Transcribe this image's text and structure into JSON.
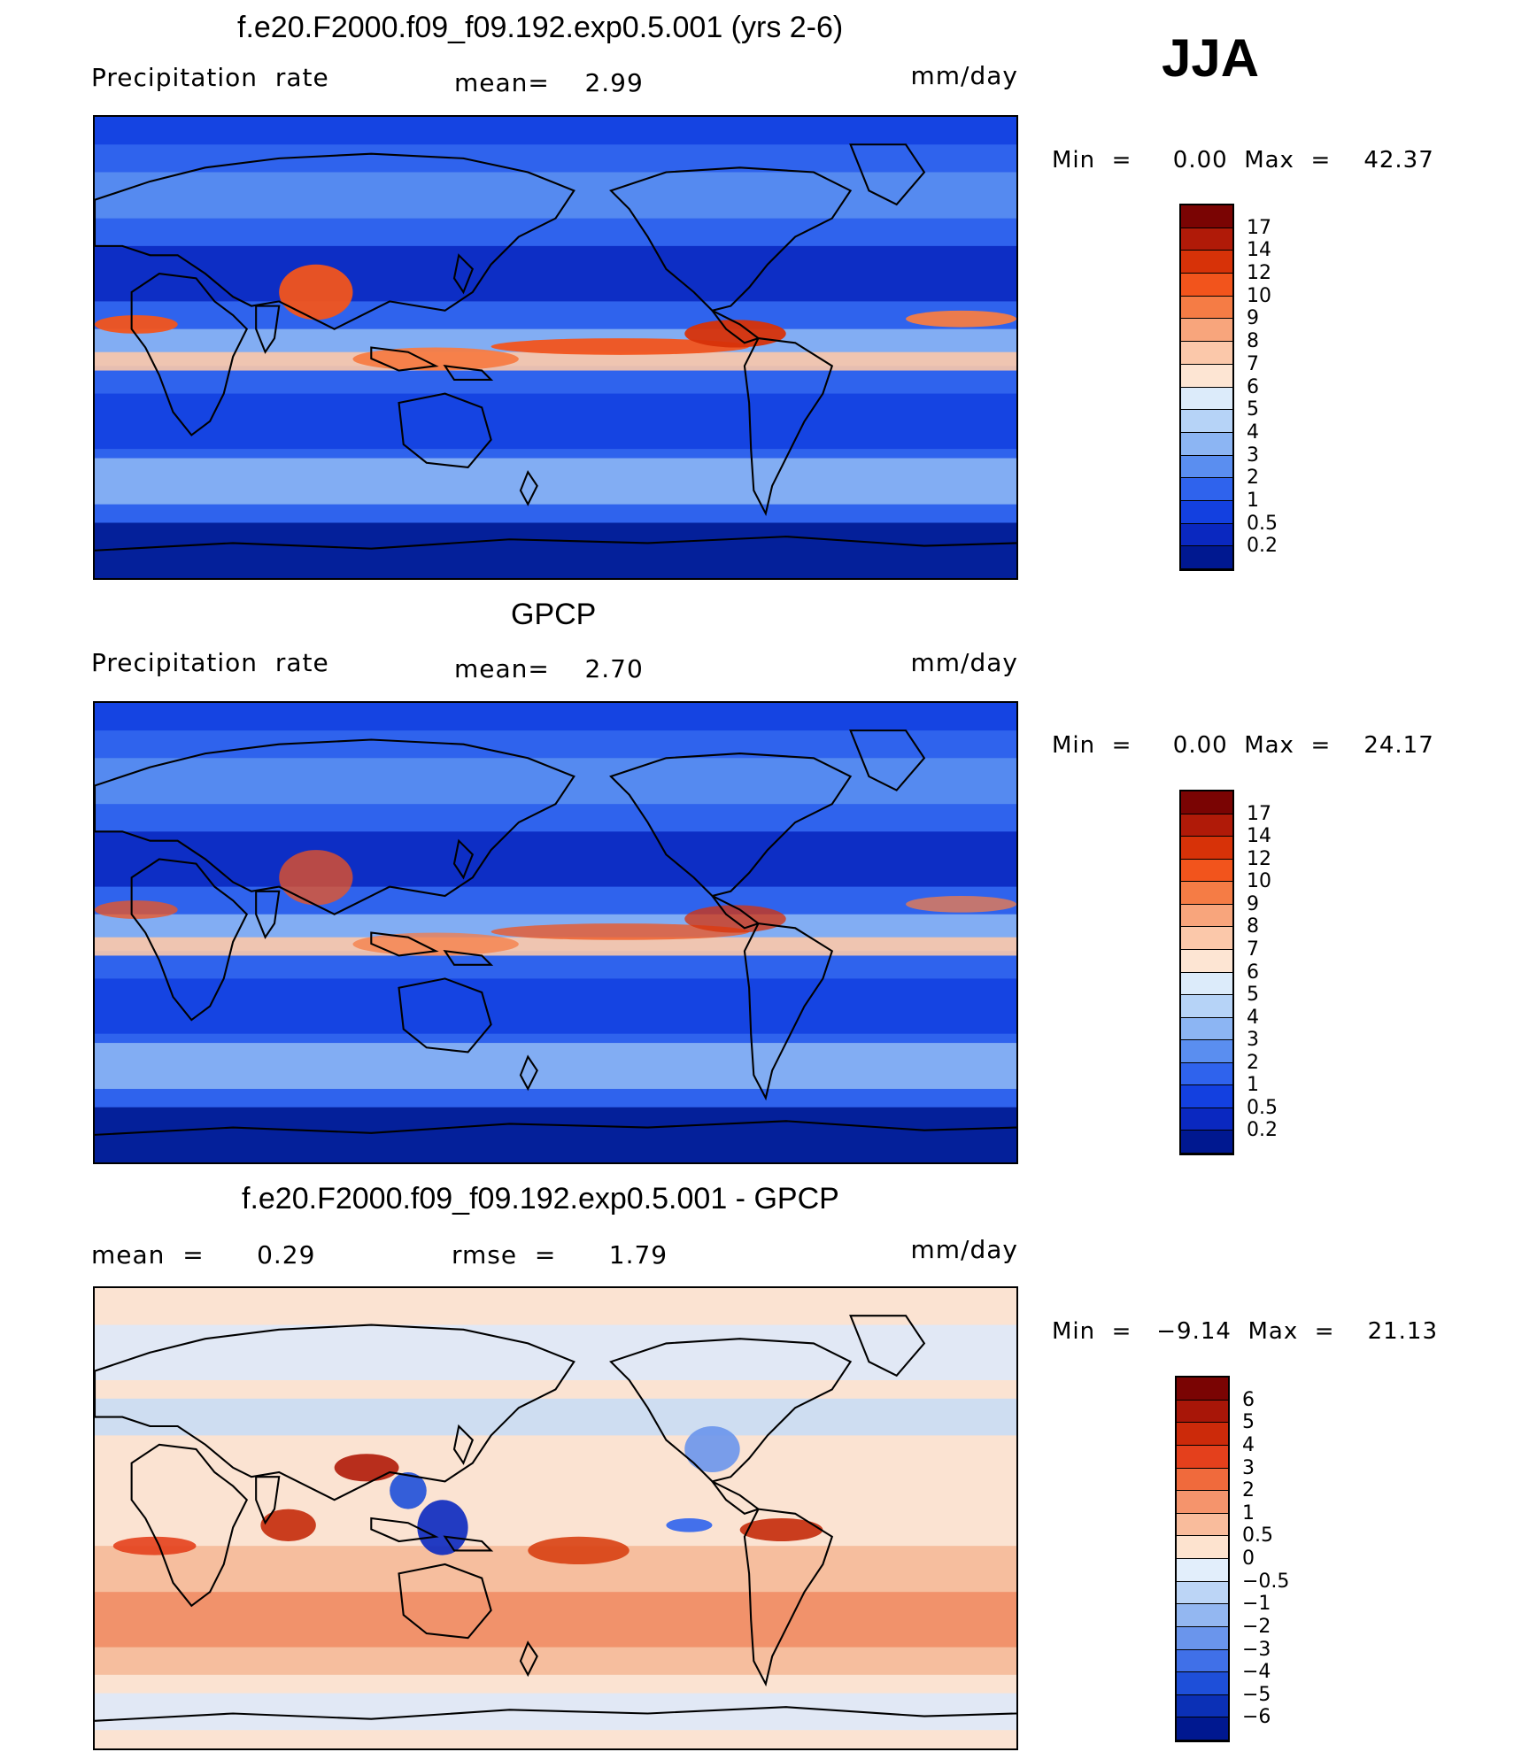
{
  "season": "JJA",
  "panels": [
    {
      "title": "f.e20.F2000.f09_f09.192.exp0.5.001 (yrs 2-6)",
      "left_label": "Precipitation  rate",
      "mid_label": "mean=    2.99",
      "units": "mm/day",
      "minmax": "Min  =     0.00  Max  =    42.37",
      "colorbar": {
        "labels": [
          "17",
          "14",
          "12",
          "10",
          "9",
          "8",
          "7",
          "6",
          "5",
          "4",
          "3",
          "2",
          "1",
          "0.5",
          "0.2"
        ],
        "colors": [
          "#7a0403",
          "#b01a08",
          "#d73208",
          "#f2541c",
          "#f57c45",
          "#f8a57c",
          "#fbc8aa",
          "#fde5d3",
          "#dcebfa",
          "#b6d3f7",
          "#8cb5f3",
          "#5a8ef0",
          "#2f63ed",
          "#1340e0",
          "#0a28c0",
          "#001890"
        ]
      },
      "map_style": "model"
    },
    {
      "title": "GPCP",
      "left_label": "Precipitation  rate",
      "mid_label": "mean=    2.70",
      "units": "mm/day",
      "minmax": "Min  =     0.00  Max  =    24.17",
      "colorbar": {
        "labels": [
          "17",
          "14",
          "12",
          "10",
          "9",
          "8",
          "7",
          "6",
          "5",
          "4",
          "3",
          "2",
          "1",
          "0.5",
          "0.2"
        ],
        "colors": [
          "#7a0403",
          "#b01a08",
          "#d73208",
          "#f2541c",
          "#f57c45",
          "#f8a57c",
          "#fbc8aa",
          "#fde5d3",
          "#dcebfa",
          "#b6d3f7",
          "#8cb5f3",
          "#5a8ef0",
          "#2f63ed",
          "#1340e0",
          "#0a28c0",
          "#001890"
        ]
      },
      "map_style": "obs"
    },
    {
      "title": "f.e20.F2000.f09_f09.192.exp0.5.001 - GPCP",
      "left_label": "mean  =      0.29",
      "mid_label": "rmse  =      1.79",
      "units": "mm/day",
      "minmax": "Min  =   −9.14  Max  =    21.13",
      "colorbar": {
        "labels": [
          "6",
          "5",
          "4",
          "3",
          "2",
          "1",
          "0.5",
          "0",
          "−0.5",
          "−1",
          "−2",
          "−3",
          "−4",
          "−5",
          "−6"
        ],
        "colors": [
          "#7a0403",
          "#a81608",
          "#cc2a0a",
          "#e4401c",
          "#f06a3c",
          "#f5946c",
          "#f9bc9c",
          "#fde3cf",
          "#e2eefb",
          "#bcd5f6",
          "#93b7f1",
          "#6a95ec",
          "#4070e8",
          "#1e4fd9",
          "#0b30b6",
          "#001890"
        ]
      },
      "map_style": "diff"
    }
  ]
}
